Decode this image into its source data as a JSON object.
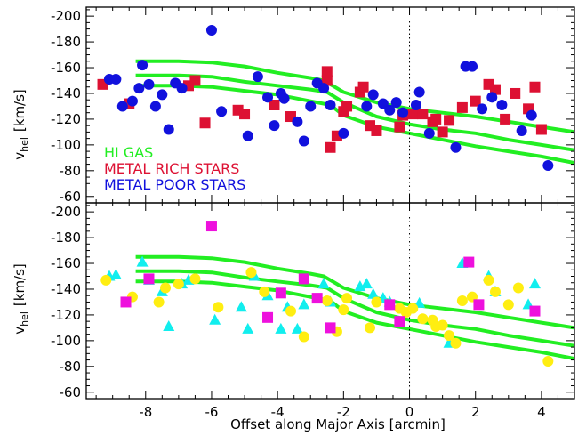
{
  "figure": {
    "xlabel": "Offset along Major Axis  [arcmin]",
    "ylabel_main": "v",
    "ylabel_sub": "hel",
    "ylabel_units": "[km/s]"
  },
  "colors": {
    "hi_gas": "#22ee22",
    "metal_rich": "#dd1133",
    "metal_poor": "#1111dd",
    "cyan": "#11eeee",
    "yellow": "#ffee11",
    "magenta": "#ee11dd",
    "axis": "#000000"
  },
  "chart_data": [
    {
      "type": "scatter",
      "panel": "top",
      "xlim": [
        -9.8,
        5.0
      ],
      "ylim": [
        -55,
        -207
      ],
      "xticks": [
        -8,
        -6,
        -4,
        -2,
        0,
        2,
        4
      ],
      "yticks": [
        -200,
        -180,
        -160,
        -140,
        -120,
        -100,
        -80,
        -60
      ],
      "vline_x": 0,
      "legend": {
        "placement": "bottom-left",
        "entries": [
          {
            "label": "HI GAS",
            "color_key": "hi_gas"
          },
          {
            "label": "METAL RICH STARS",
            "color_key": "metal_rich"
          },
          {
            "label": "METAL POOR STARS",
            "color_key": "metal_poor"
          }
        ]
      },
      "series": [
        {
          "name": "HI GAS",
          "kind": "line",
          "color_key": "hi_gas",
          "lines": [
            {
              "x": [
                -8.3,
                -7,
                -6,
                -5,
                -4,
                -3,
                -2.6,
                -2,
                -1,
                0,
                1,
                2,
                3,
                4,
                5
              ],
              "y": [
                -165,
                -165,
                -164,
                -161,
                -156,
                -152,
                -150,
                -141,
                -133,
                -128,
                -125,
                -122,
                -118,
                -114,
                -110
              ]
            },
            {
              "x": [
                -8.3,
                -7,
                -6,
                -5,
                -4,
                -3,
                -2.5,
                -2,
                -1,
                0,
                1,
                2,
                3,
                4,
                5
              ],
              "y": [
                -154,
                -154,
                -153,
                -149,
                -146,
                -143,
                -141,
                -133,
                -122,
                -116,
                -112,
                -109,
                -104,
                -100,
                -96
              ]
            },
            {
              "x": [
                -8.3,
                -7,
                -6,
                -5,
                -4,
                -3,
                -2.4,
                -2,
                -1,
                0,
                1,
                2,
                3,
                4,
                5
              ],
              "y": [
                -146,
                -146,
                -145,
                -142,
                -139,
                -134,
                -131,
                -123,
                -114,
                -109,
                -104,
                -99,
                -95,
                -91,
                -86
              ]
            }
          ]
        },
        {
          "name": "METAL RICH STARS",
          "kind": "square",
          "color_key": "metal_rich",
          "points": [
            [
              -9.3,
              -147
            ],
            [
              -8.5,
              -132
            ],
            [
              -6.7,
              -146
            ],
            [
              -6.5,
              -150
            ],
            [
              -6.2,
              -117
            ],
            [
              -5.2,
              -127
            ],
            [
              -5.0,
              -124
            ],
            [
              -4.1,
              -131
            ],
            [
              -3.6,
              -122
            ],
            [
              -2.5,
              -157
            ],
            [
              -2.5,
              -150
            ],
            [
              -2.4,
              -98
            ],
            [
              -2.2,
              -107
            ],
            [
              -2.0,
              -126
            ],
            [
              -1.9,
              -130
            ],
            [
              -1.5,
              -141
            ],
            [
              -1.4,
              -145
            ],
            [
              -1.2,
              -115
            ],
            [
              -1.0,
              -111
            ],
            [
              -0.3,
              -114
            ],
            [
              -0.2,
              -123
            ],
            [
              0.1,
              -124
            ],
            [
              0.4,
              -124
            ],
            [
              0.7,
              -118
            ],
            [
              0.8,
              -120
            ],
            [
              1.0,
              -110
            ],
            [
              1.2,
              -119
            ],
            [
              1.6,
              -129
            ],
            [
              2.0,
              -134
            ],
            [
              2.4,
              -147
            ],
            [
              2.6,
              -143
            ],
            [
              2.9,
              -120
            ],
            [
              3.2,
              -140
            ],
            [
              3.6,
              -128
            ],
            [
              3.8,
              -145
            ],
            [
              4.0,
              -112
            ]
          ]
        },
        {
          "name": "METAL POOR STARS",
          "kind": "circle",
          "color_key": "metal_poor",
          "points": [
            [
              -9.1,
              -151
            ],
            [
              -8.9,
              -151
            ],
            [
              -8.7,
              -130
            ],
            [
              -8.4,
              -134
            ],
            [
              -8.2,
              -144
            ],
            [
              -8.1,
              -162
            ],
            [
              -7.9,
              -147
            ],
            [
              -7.7,
              -130
            ],
            [
              -7.5,
              -139
            ],
            [
              -7.3,
              -112
            ],
            [
              -7.1,
              -148
            ],
            [
              -6.9,
              -144
            ],
            [
              -6.0,
              -189
            ],
            [
              -5.7,
              -126
            ],
            [
              -4.9,
              -107
            ],
            [
              -4.6,
              -153
            ],
            [
              -4.3,
              -137
            ],
            [
              -4.1,
              -115
            ],
            [
              -3.9,
              -140
            ],
            [
              -3.8,
              -136
            ],
            [
              -3.4,
              -118
            ],
            [
              -3.2,
              -103
            ],
            [
              -3.0,
              -130
            ],
            [
              -2.8,
              -148
            ],
            [
              -2.6,
              -144
            ],
            [
              -2.4,
              -131
            ],
            [
              -2.0,
              -109
            ],
            [
              -1.3,
              -130
            ],
            [
              -1.1,
              -139
            ],
            [
              -0.8,
              -132
            ],
            [
              -0.6,
              -127
            ],
            [
              -0.4,
              -133
            ],
            [
              -0.2,
              -125
            ],
            [
              0.2,
              -131
            ],
            [
              0.3,
              -141
            ],
            [
              0.6,
              -109
            ],
            [
              1.4,
              -98
            ],
            [
              1.7,
              -161
            ],
            [
              1.9,
              -161
            ],
            [
              2.2,
              -128
            ],
            [
              2.5,
              -137
            ],
            [
              2.8,
              -131
            ],
            [
              3.4,
              -111
            ],
            [
              3.7,
              -123
            ],
            [
              4.2,
              -84
            ]
          ]
        }
      ]
    },
    {
      "type": "scatter",
      "panel": "bottom",
      "xlim": [
        -9.8,
        5.0
      ],
      "ylim": [
        -55,
        -207
      ],
      "xticks": [
        -8,
        -6,
        -4,
        -2,
        0,
        2,
        4
      ],
      "xtick_labels": [
        "-8",
        "-6",
        "-4",
        "-2",
        "0",
        "2",
        "4"
      ],
      "yticks": [
        -200,
        -180,
        -160,
        -140,
        -120,
        -100,
        -80,
        -60
      ],
      "vline_x": 0,
      "series": [
        {
          "kind": "line",
          "color_key": "hi_gas",
          "lines": [
            {
              "x": [
                -8.3,
                -7,
                -6,
                -5,
                -4,
                -3,
                -2.6,
                -2,
                -1,
                0,
                1,
                2,
                3,
                4,
                5
              ],
              "y": [
                -165,
                -165,
                -164,
                -161,
                -156,
                -152,
                -150,
                -141,
                -133,
                -128,
                -125,
                -122,
                -118,
                -114,
                -110
              ]
            },
            {
              "x": [
                -8.3,
                -7,
                -6,
                -5,
                -4,
                -3,
                -2.5,
                -2,
                -1,
                0,
                1,
                2,
                3,
                4,
                5
              ],
              "y": [
                -154,
                -154,
                -153,
                -149,
                -146,
                -143,
                -141,
                -133,
                -122,
                -116,
                -112,
                -109,
                -104,
                -100,
                -96
              ]
            },
            {
              "x": [
                -8.3,
                -7,
                -6,
                -5,
                -4,
                -3,
                -2.4,
                -2,
                -1,
                0,
                1,
                2,
                3,
                4,
                5
              ],
              "y": [
                -146,
                -146,
                -145,
                -142,
                -139,
                -134,
                -131,
                -123,
                -114,
                -109,
                -104,
                -99,
                -95,
                -91,
                -86
              ]
            }
          ]
        },
        {
          "kind": "triangle",
          "color_key": "cyan",
          "points": [
            [
              -9.1,
              -150
            ],
            [
              -8.9,
              -151
            ],
            [
              -8.1,
              -161
            ],
            [
              -7.9,
              -147
            ],
            [
              -7.5,
              -138
            ],
            [
              -7.3,
              -111
            ],
            [
              -6.9,
              -144
            ],
            [
              -6.7,
              -147
            ],
            [
              -5.9,
              -116
            ],
            [
              -5.1,
              -126
            ],
            [
              -4.9,
              -109
            ],
            [
              -4.7,
              -150
            ],
            [
              -4.3,
              -135
            ],
            [
              -3.9,
              -109
            ],
            [
              -3.7,
              -126
            ],
            [
              -3.4,
              -109
            ],
            [
              -3.2,
              -128
            ],
            [
              -2.6,
              -144
            ],
            [
              -2.4,
              -130
            ],
            [
              -1.5,
              -142
            ],
            [
              -1.3,
              -144
            ],
            [
              -1.1,
              -136
            ],
            [
              -0.8,
              -133
            ],
            [
              -0.6,
              -130
            ],
            [
              0.3,
              -129
            ],
            [
              1.2,
              -98
            ],
            [
              1.6,
              -160
            ],
            [
              2.4,
              -150
            ],
            [
              2.6,
              -138
            ],
            [
              3.6,
              -128
            ],
            [
              3.8,
              -144
            ]
          ]
        },
        {
          "kind": "circle",
          "color_key": "yellow",
          "points": [
            [
              -9.2,
              -147
            ],
            [
              -8.4,
              -134
            ],
            [
              -7.6,
              -130
            ],
            [
              -7.4,
              -141
            ],
            [
              -7.0,
              -144
            ],
            [
              -6.5,
              -148
            ],
            [
              -5.8,
              -126
            ],
            [
              -4.8,
              -153
            ],
            [
              -4.4,
              -138
            ],
            [
              -3.6,
              -123
            ],
            [
              -3.2,
              -103
            ],
            [
              -2.5,
              -131
            ],
            [
              -2.2,
              -107
            ],
            [
              -2.0,
              -124
            ],
            [
              -1.9,
              -133
            ],
            [
              -1.2,
              -110
            ],
            [
              -1.0,
              -130
            ],
            [
              -0.3,
              -125
            ],
            [
              -0.1,
              -122
            ],
            [
              0.1,
              -125
            ],
            [
              0.4,
              -117
            ],
            [
              0.7,
              -116
            ],
            [
              0.8,
              -111
            ],
            [
              1.0,
              -112
            ],
            [
              1.2,
              -104
            ],
            [
              1.4,
              -98
            ],
            [
              1.6,
              -131
            ],
            [
              1.9,
              -134
            ],
            [
              2.4,
              -147
            ],
            [
              2.6,
              -138
            ],
            [
              3.0,
              -128
            ],
            [
              3.3,
              -141
            ],
            [
              4.2,
              -84
            ]
          ]
        },
        {
          "kind": "square",
          "color_key": "magenta",
          "points": [
            [
              -8.6,
              -130
            ],
            [
              -7.9,
              -148
            ],
            [
              -6.0,
              -189
            ],
            [
              -4.3,
              -118
            ],
            [
              -3.9,
              -137
            ],
            [
              -3.2,
              -148
            ],
            [
              -2.8,
              -133
            ],
            [
              -2.4,
              -110
            ],
            [
              -0.6,
              -128
            ],
            [
              -0.3,
              -115
            ],
            [
              1.8,
              -161
            ],
            [
              2.1,
              -128
            ],
            [
              3.8,
              -123
            ]
          ]
        }
      ]
    }
  ]
}
